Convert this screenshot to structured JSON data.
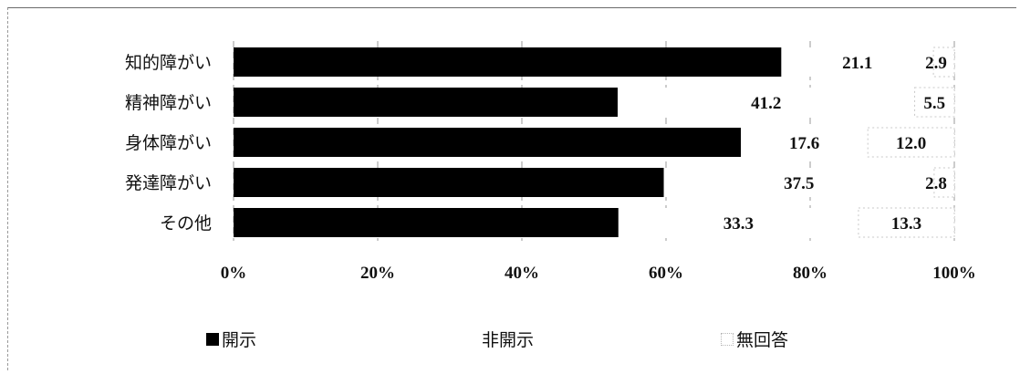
{
  "chart_data": {
    "type": "bar",
    "orientation": "horizontal",
    "stacked": true,
    "categories": [
      "知的障がい",
      "精神障がい",
      "身体障がい",
      "発達障がい",
      "その他"
    ],
    "series": [
      {
        "name": "開示",
        "values": [
          76.0,
          53.3,
          70.4,
          59.7,
          53.4
        ],
        "color": "#000000"
      },
      {
        "name": "非開示",
        "values": [
          21.1,
          41.2,
          17.6,
          37.5,
          33.3
        ],
        "color": "#ffffff"
      },
      {
        "name": "無回答",
        "values": [
          2.9,
          5.5,
          12.0,
          2.8,
          13.3
        ],
        "color": "#ffffff"
      }
    ],
    "data_labels": {
      "非開示": [
        "21.1",
        "41.2",
        "17.6",
        "37.5",
        "33.3"
      ],
      "無回答": [
        "2.9",
        "5.5",
        "12.0",
        "2.8",
        "13.3"
      ]
    },
    "x_ticks": [
      "0%",
      "20%",
      "40%",
      "60%",
      "80%",
      "100%"
    ],
    "xlim": [
      0,
      100
    ],
    "grid": true,
    "legend_position": "bottom"
  },
  "legend": {
    "items": [
      {
        "label": "開示",
        "swatch": "black"
      },
      {
        "label": "非開示",
        "swatch": "white"
      },
      {
        "label": "無回答",
        "swatch": "open"
      }
    ]
  }
}
